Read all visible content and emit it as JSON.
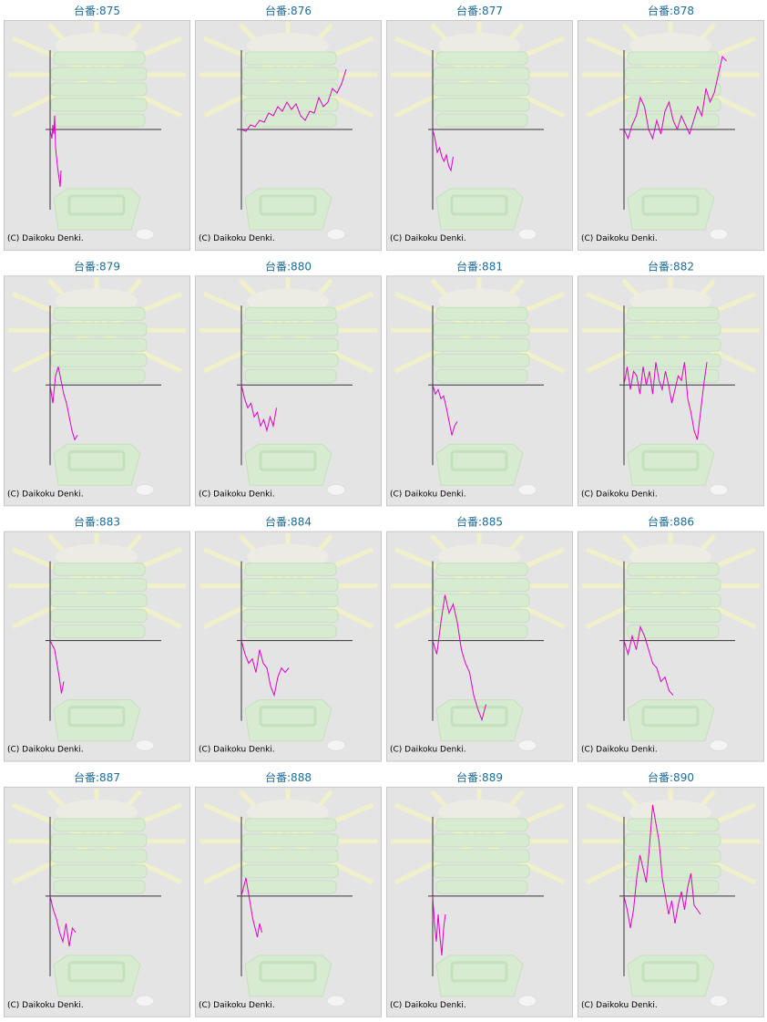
{
  "chart_data": [
    {
      "type": "line",
      "title": "台番:875",
      "credit": "(C) Daikoku Denki.",
      "color": "#e000c8",
      "xlim": [
        0,
        122
      ],
      "ylim": [
        -88,
        88
      ],
      "x": [
        0,
        2,
        3,
        4,
        5,
        6,
        8,
        10,
        11,
        12
      ],
      "values": [
        0,
        -10,
        5,
        -5,
        15,
        -20,
        -40,
        -55,
        -63,
        -45
      ]
    },
    {
      "type": "line",
      "title": "台番:876",
      "credit": "(C) Daikoku Denki.",
      "color": "#e000c8",
      "xlim": [
        0,
        122
      ],
      "ylim": [
        -88,
        88
      ],
      "x": [
        0,
        5,
        10,
        15,
        20,
        25,
        30,
        35,
        40,
        45,
        50,
        55,
        60,
        65,
        70,
        75,
        80,
        85,
        90,
        95,
        100,
        105,
        110,
        115
      ],
      "values": [
        0,
        -2,
        5,
        3,
        10,
        8,
        18,
        15,
        25,
        20,
        30,
        22,
        28,
        15,
        10,
        20,
        18,
        35,
        25,
        30,
        45,
        40,
        50,
        66
      ]
    },
    {
      "type": "line",
      "title": "台番:877",
      "credit": "(C) Daikoku Denki.",
      "color": "#e000c8",
      "xlim": [
        0,
        122
      ],
      "ylim": [
        -88,
        88
      ],
      "x": [
        0,
        2.5,
        5,
        7.5,
        10,
        12.5,
        15,
        17.5,
        20,
        22.5
      ],
      "values": [
        0,
        -10,
        -25,
        -20,
        -30,
        -35,
        -28,
        -40,
        -45,
        -30
      ]
    },
    {
      "type": "line",
      "title": "台番:878",
      "credit": "(C) Daikoku Denki.",
      "color": "#e000c8",
      "xlim": [
        0,
        122
      ],
      "ylim": [
        -88,
        88
      ],
      "x": [
        0,
        4.5,
        9,
        13.5,
        18,
        22.5,
        27,
        31.5,
        36,
        40.5,
        45,
        49.5,
        54,
        58.5,
        63,
        67.5,
        72,
        76.5,
        81,
        85.5,
        90,
        94.5,
        99,
        103.5,
        108,
        112.5
      ],
      "values": [
        0,
        -10,
        5,
        15,
        35,
        25,
        0,
        -10,
        10,
        -5,
        20,
        30,
        10,
        0,
        15,
        5,
        -5,
        10,
        25,
        15,
        45,
        30,
        40,
        60,
        80,
        75
      ]
    },
    {
      "type": "line",
      "title": "台番:879",
      "credit": "(C) Daikoku Denki.",
      "color": "#e000c8",
      "xlim": [
        0,
        122
      ],
      "ylim": [
        -88,
        88
      ],
      "x": [
        0,
        3,
        6,
        9,
        12,
        15,
        18,
        21,
        24,
        27,
        30
      ],
      "values": [
        0,
        -20,
        10,
        20,
        5,
        -10,
        -20,
        -35,
        -50,
        -60,
        -55
      ]
    },
    {
      "type": "line",
      "title": "台番:880",
      "credit": "(C) Daikoku Denki.",
      "color": "#e000c8",
      "xlim": [
        0,
        122
      ],
      "ylim": [
        -88,
        88
      ],
      "x": [
        0,
        3.5,
        7,
        10.5,
        14,
        17.5,
        21,
        24.5,
        28,
        31.5,
        35,
        38.5
      ],
      "values": [
        0,
        -15,
        -25,
        -20,
        -35,
        -30,
        -45,
        -38,
        -50,
        -35,
        -45,
        -25
      ]
    },
    {
      "type": "line",
      "title": "台番:881",
      "credit": "(C) Daikoku Denki.",
      "color": "#e000c8",
      "xlim": [
        0,
        122
      ],
      "ylim": [
        -88,
        88
      ],
      "x": [
        0,
        3,
        6,
        9,
        12,
        15,
        18,
        21,
        24,
        27
      ],
      "values": [
        0,
        -10,
        -5,
        -15,
        -12,
        -25,
        -40,
        -55,
        -45,
        -40
      ]
    },
    {
      "type": "line",
      "title": "台番:882",
      "credit": "(C) Daikoku Denki.",
      "color": "#e000c8",
      "xlim": [
        0,
        122
      ],
      "ylim": [
        -88,
        88
      ],
      "x": [
        0,
        3.5,
        7,
        10.5,
        14,
        17.5,
        21,
        24.5,
        28,
        31.5,
        35,
        38.5,
        42,
        45.5,
        49,
        52.5,
        56,
        59.5,
        63,
        66.5,
        70,
        73.5,
        77,
        80.5,
        84,
        87.5,
        91
      ],
      "values": [
        0,
        20,
        -5,
        15,
        10,
        -10,
        20,
        0,
        15,
        -10,
        25,
        5,
        -5,
        15,
        0,
        -20,
        -5,
        10,
        5,
        25,
        -15,
        -30,
        -50,
        -60,
        -30,
        0,
        25
      ]
    },
    {
      "type": "line",
      "title": "台番:883",
      "credit": "(C) Daikoku Denki.",
      "color": "#e000c8",
      "xlim": [
        0,
        122
      ],
      "ylim": [
        -88,
        88
      ],
      "x": [
        0,
        2.5,
        5,
        7.5,
        10,
        12.5,
        15
      ],
      "values": [
        0,
        -5,
        -10,
        -25,
        -40,
        -58,
        -45
      ]
    },
    {
      "type": "line",
      "title": "台番:884",
      "credit": "(C) Daikoku Denki.",
      "color": "#e000c8",
      "xlim": [
        0,
        122
      ],
      "ylim": [
        -88,
        88
      ],
      "x": [
        0,
        4,
        8,
        12,
        16,
        20,
        24,
        28,
        32,
        36,
        40,
        44,
        48,
        52
      ],
      "values": [
        0,
        -15,
        -25,
        -20,
        -35,
        -10,
        -25,
        -30,
        -50,
        -60,
        -40,
        -30,
        -35,
        -30
      ]
    },
    {
      "type": "line",
      "title": "台番:885",
      "credit": "(C) Daikoku Denki.",
      "color": "#e000c8",
      "xlim": [
        0,
        122
      ],
      "ylim": [
        -88,
        88
      ],
      "x": [
        0,
        4.5,
        9,
        13.5,
        18,
        22.5,
        27,
        31.5,
        36,
        40.5,
        45,
        49.5,
        54,
        58.5
      ],
      "values": [
        0,
        -15,
        20,
        50,
        30,
        40,
        20,
        -10,
        -25,
        -35,
        -60,
        -75,
        -87,
        -70
      ]
    },
    {
      "type": "line",
      "title": "台番:886",
      "credit": "(C) Daikoku Denki.",
      "color": "#e000c8",
      "xlim": [
        0,
        122
      ],
      "ylim": [
        -88,
        88
      ],
      "x": [
        0,
        4.5,
        9,
        13.5,
        18,
        22.5,
        27,
        31.5,
        36,
        40.5,
        45,
        49.5,
        54
      ],
      "values": [
        0,
        -15,
        5,
        -10,
        15,
        5,
        -10,
        -25,
        -30,
        -45,
        -40,
        -55,
        -60
      ]
    },
    {
      "type": "line",
      "title": "台番:887",
      "credit": "(C) Daikoku Denki.",
      "color": "#e000c8",
      "xlim": [
        0,
        122
      ],
      "ylim": [
        -88,
        88
      ],
      "x": [
        0,
        3.5,
        7,
        10.5,
        14,
        17.5,
        21,
        24.5,
        28
      ],
      "values": [
        0,
        -15,
        -25,
        -40,
        -50,
        -30,
        -55,
        -35,
        -40
      ]
    },
    {
      "type": "line",
      "title": "台番:888",
      "credit": "(C) Daikoku Denki.",
      "color": "#e000c8",
      "xlim": [
        0,
        122
      ],
      "ylim": [
        -88,
        88
      ],
      "x": [
        0,
        2.5,
        5,
        7.5,
        10,
        12.5,
        15,
        17.5,
        20,
        22.5
      ],
      "values": [
        0,
        10,
        20,
        5,
        -10,
        -25,
        -35,
        -45,
        -30,
        -40
      ]
    },
    {
      "type": "line",
      "title": "台番:889",
      "credit": "(C) Daikoku Denki.",
      "color": "#e000c8",
      "xlim": [
        0,
        122
      ],
      "ylim": [
        -88,
        88
      ],
      "x": [
        0,
        2,
        4,
        6,
        8,
        10,
        12,
        14
      ],
      "values": [
        0,
        -30,
        -50,
        -20,
        -45,
        -65,
        -35,
        -20
      ]
    },
    {
      "type": "line",
      "title": "台番:890",
      "credit": "(C) Daikoku Denki.",
      "color": "#e000c8",
      "xlim": [
        0,
        122
      ],
      "ylim": [
        -88,
        88
      ],
      "x": [
        0,
        3.5,
        7,
        10.5,
        14,
        17.5,
        21,
        24.5,
        28,
        31.5,
        35,
        38.5,
        42,
        45.5,
        49,
        52.5,
        56,
        59.5,
        63,
        66.5,
        70,
        73.5,
        77,
        80.5,
        84
      ],
      "values": [
        0,
        -15,
        -35,
        -15,
        20,
        45,
        30,
        15,
        55,
        100,
        80,
        60,
        20,
        0,
        -20,
        -5,
        -30,
        -10,
        5,
        -15,
        10,
        25,
        -10,
        -15,
        -20
      ]
    }
  ]
}
